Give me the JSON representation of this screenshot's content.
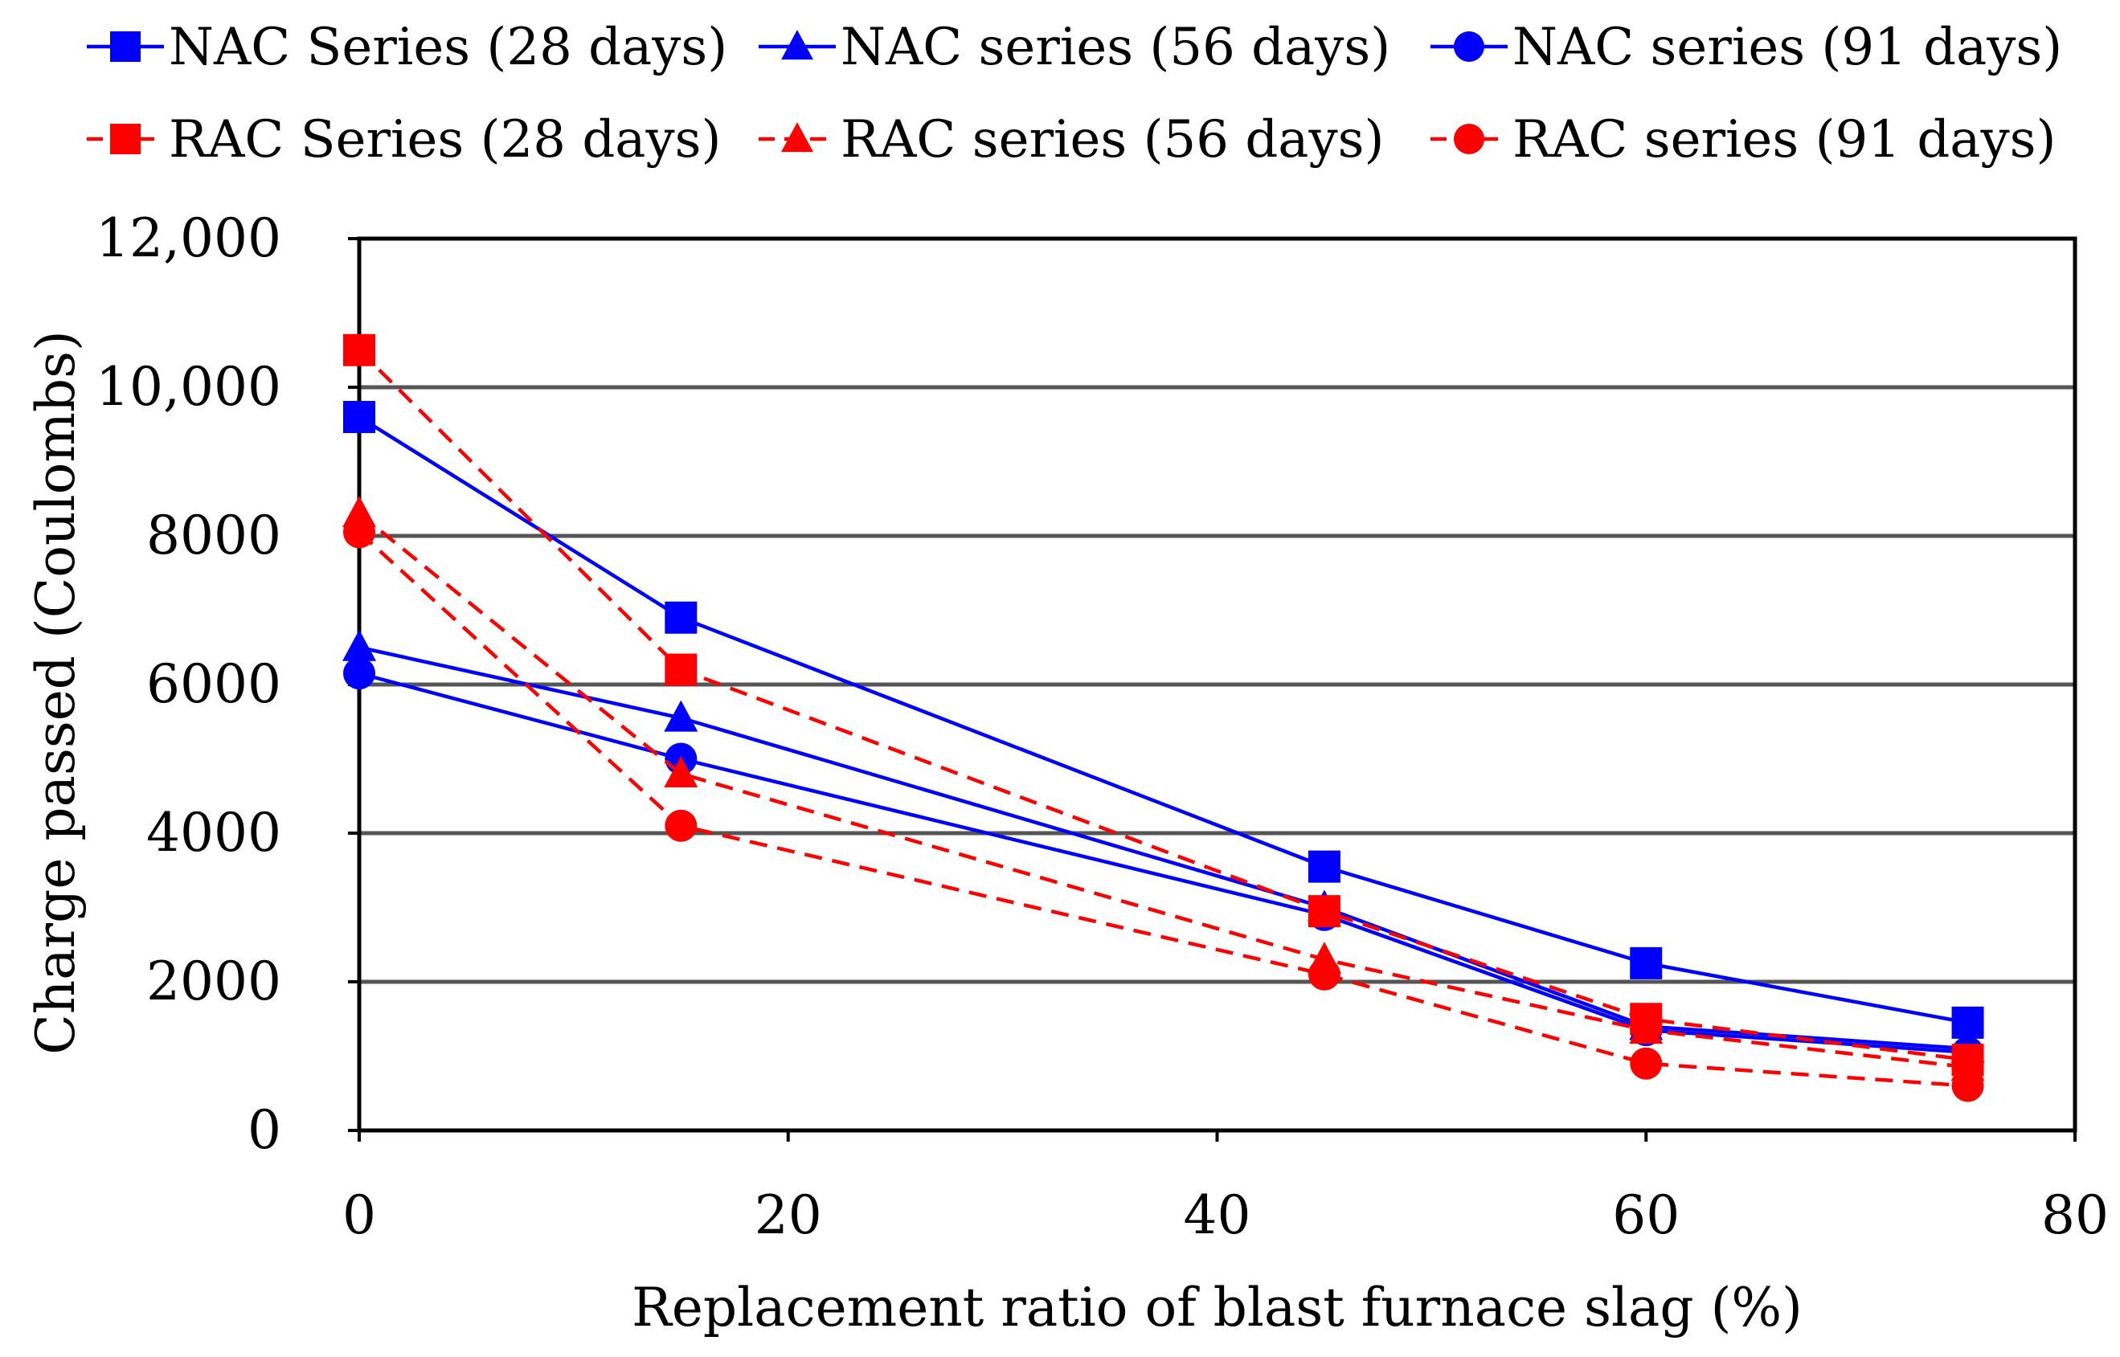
{
  "chart_data": {
    "type": "line",
    "title": "",
    "xlabel": "Replacement ratio of blast furnace slag (%)",
    "ylabel": "Charge passed (Coulombs)",
    "xlim": [
      0,
      80
    ],
    "ylim": [
      0,
      12000
    ],
    "x_ticks": [
      0,
      20,
      40,
      60,
      80
    ],
    "x_tick_labels": [
      "0",
      "20",
      "40",
      "60",
      "80"
    ],
    "y_ticks": [
      0,
      2000,
      4000,
      6000,
      8000,
      10000,
      12000
    ],
    "y_tick_labels": [
      "0",
      "2000",
      "4000",
      "6000",
      "8000",
      "10,000",
      "12,000"
    ],
    "grid": "horizontal",
    "legend_position": "top",
    "x": [
      0,
      15,
      45,
      60,
      75
    ],
    "series": [
      {
        "name": "NAC Series (28 days)",
        "values": [
          9600,
          6900,
          3550,
          2250,
          1450
        ],
        "color": "#0000ff",
        "marker": "square",
        "line": "solid"
      },
      {
        "name": "NAC series (56 days)",
        "values": [
          6500,
          5550,
          3000,
          1400,
          1100
        ],
        "color": "#0000ff",
        "marker": "triangle",
        "line": "solid"
      },
      {
        "name": "NAC series (91 days)",
        "values": [
          6150,
          5000,
          2900,
          1350,
          1050
        ],
        "color": "#0000ff",
        "marker": "circle",
        "line": "solid"
      },
      {
        "name": "RAC Series (28 days)",
        "values": [
          10500,
          6200,
          2950,
          1500,
          950
        ],
        "color": "#ff0000",
        "marker": "square",
        "line": "dashed"
      },
      {
        "name": "RAC series (56 days)",
        "values": [
          8300,
          4800,
          2300,
          1350,
          850
        ],
        "color": "#ff0000",
        "marker": "triangle",
        "line": "dashed"
      },
      {
        "name": "RAC series (91 days)",
        "values": [
          8050,
          4100,
          2100,
          900,
          600
        ],
        "color": "#ff0000",
        "marker": "circle",
        "line": "dashed"
      }
    ]
  }
}
